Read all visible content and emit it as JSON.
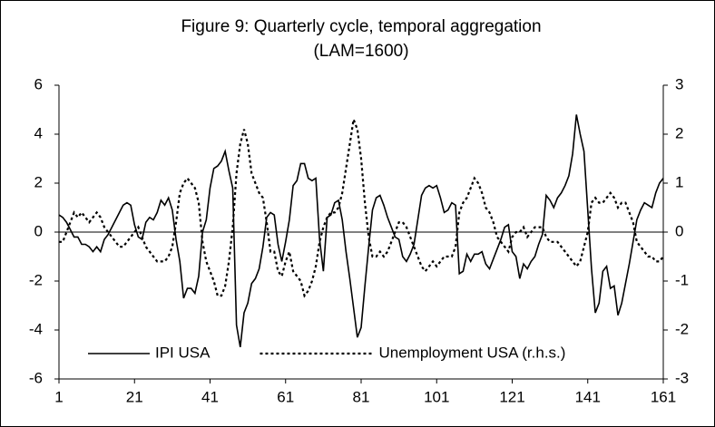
{
  "chart_data": {
    "type": "line",
    "title": [
      "Figure 9: Quarterly cycle, temporal aggregation",
      "(LAM=1600)"
    ],
    "x": [
      1,
      2,
      3,
      4,
      5,
      6,
      7,
      8,
      9,
      10,
      11,
      12,
      13,
      14,
      15,
      16,
      17,
      18,
      19,
      20,
      21,
      22,
      23,
      24,
      25,
      26,
      27,
      28,
      29,
      30,
      31,
      32,
      33,
      34,
      35,
      36,
      37,
      38,
      39,
      40,
      41,
      42,
      43,
      44,
      45,
      46,
      47,
      48,
      49,
      50,
      51,
      52,
      53,
      54,
      55,
      56,
      57,
      58,
      59,
      60,
      61,
      62,
      63,
      64,
      65,
      66,
      67,
      68,
      69,
      70,
      71,
      72,
      73,
      74,
      75,
      76,
      77,
      78,
      79,
      80,
      81,
      82,
      83,
      84,
      85,
      86,
      87,
      88,
      89,
      90,
      91,
      92,
      93,
      94,
      95,
      96,
      97,
      98,
      99,
      100,
      101,
      102,
      103,
      104,
      105,
      106,
      107,
      108,
      109,
      110,
      111,
      112,
      113,
      114,
      115,
      116,
      117,
      118,
      119,
      120,
      121,
      122,
      123,
      124,
      125,
      126,
      127,
      128,
      129,
      130,
      131,
      132,
      133,
      134,
      135,
      136,
      137,
      138,
      139,
      140,
      141,
      142,
      143,
      144,
      145,
      146,
      147,
      148,
      149,
      150,
      151,
      152,
      153,
      154,
      155,
      156,
      157,
      158,
      159,
      160,
      161
    ],
    "series": [
      {
        "name": "IPI USA",
        "color": "#000000",
        "line_style": "solid",
        "axis": "y",
        "values": [
          0.7,
          0.6,
          0.4,
          0.1,
          -0.2,
          -0.2,
          -0.5,
          -0.5,
          -0.6,
          -0.8,
          -0.6,
          -0.8,
          -0.3,
          -0.1,
          0.2,
          0.5,
          0.8,
          1.1,
          1.2,
          1.1,
          0.3,
          -0.2,
          -0.3,
          0.4,
          0.6,
          0.5,
          0.8,
          1.3,
          1.1,
          1.4,
          0.9,
          -0.3,
          -1.2,
          -2.7,
          -2.3,
          -2.3,
          -2.5,
          -1.8,
          0,
          0.5,
          1.8,
          2.6,
          2.7,
          2.9,
          3.3,
          2.5,
          1.8,
          -3.8,
          -4.7,
          -3.3,
          -2.9,
          -2.1,
          -1.9,
          -1.5,
          -0.6,
          0.6,
          0.8,
          0.7,
          -0.5,
          -1.2,
          -0.4,
          0.5,
          1.9,
          2.1,
          2.8,
          2.8,
          2.2,
          2.1,
          2.2,
          -0.3,
          -1.6,
          0.6,
          0.7,
          1.2,
          1.3,
          0.5,
          -0.8,
          -1.9,
          -3.1,
          -4.3,
          -3.9,
          -2.2,
          -0.6,
          0.9,
          1.4,
          1.5,
          1.1,
          0.6,
          0.2,
          -0.2,
          -0.3,
          -1.0,
          -1.2,
          -0.9,
          -0.5,
          0.5,
          1.5,
          1.8,
          1.9,
          1.8,
          1.9,
          1.4,
          0.8,
          0.9,
          1.2,
          1.1,
          -1.7,
          -1.6,
          -0.9,
          -1.2,
          -0.9,
          -0.9,
          -0.8,
          -1.3,
          -1.5,
          -1.1,
          -0.7,
          -0.3,
          0.2,
          0.3,
          -0.8,
          -1.0,
          -1.9,
          -1.3,
          -1.5,
          -1.2,
          -1.0,
          -0.5,
          -0.1,
          1.5,
          1.3,
          1.0,
          1.4,
          1.6,
          1.9,
          2.3,
          3.2,
          4.8,
          4.0,
          3.3,
          0.9,
          -1.5,
          -3.3,
          -2.9,
          -1.6,
          -1.4,
          -2.3,
          -2.2,
          -3.4,
          -2.9,
          -2.1,
          -1.3,
          -0.4,
          0.5,
          0.9,
          1.2,
          1.1,
          1.0,
          1.6,
          2.0,
          2.2
        ]
      },
      {
        "name": "Unemployment USA (r.h.s.)",
        "color": "#000000",
        "line_style": "dashed",
        "axis": "y2",
        "values": [
          -0.2,
          -0.2,
          0,
          0.2,
          0.4,
          0.3,
          0.4,
          0.3,
          0.2,
          0.3,
          0.4,
          0.3,
          0.1,
          0,
          -0.1,
          -0.2,
          -0.3,
          -0.3,
          -0.2,
          -0.1,
          0,
          0.1,
          -0.1,
          -0.3,
          -0.4,
          -0.5,
          -0.6,
          -0.6,
          -0.6,
          -0.5,
          -0.3,
          0.2,
          0.8,
          1.0,
          1.1,
          1.0,
          0.9,
          0.6,
          -0.2,
          -0.6,
          -0.8,
          -1.0,
          -1.3,
          -1.3,
          -1.1,
          -0.6,
          0.1,
          1.2,
          1.8,
          2.1,
          1.8,
          1.2,
          1.0,
          0.8,
          0.7,
          0.2,
          -0.4,
          -0.4,
          -0.8,
          -0.9,
          -0.6,
          -0.4,
          -0.8,
          -0.9,
          -1.0,
          -1.3,
          -1.2,
          -1.0,
          -0.7,
          -0.2,
          0.1,
          0.3,
          0.4,
          0.4,
          0.5,
          0.8,
          1.3,
          1.8,
          2.3,
          2.1,
          1.5,
          0.6,
          -0.1,
          -0.5,
          -0.5,
          -0.4,
          -0.5,
          -0.4,
          -0.2,
          0,
          0.2,
          0.2,
          0.1,
          -0.1,
          -0.3,
          -0.5,
          -0.7,
          -0.8,
          -0.7,
          -0.6,
          -0.7,
          -0.6,
          -0.5,
          -0.5,
          -0.5,
          -0.3,
          0.4,
          0.6,
          0.7,
          0.9,
          1.1,
          1.0,
          0.8,
          0.5,
          0.4,
          0.2,
          -0.1,
          -0.2,
          -0.3,
          -0.4,
          -0.1,
          0,
          0,
          0.1,
          -0.1,
          0,
          0.1,
          0.1,
          0.1,
          -0.1,
          -0.2,
          -0.2,
          -0.2,
          -0.3,
          -0.4,
          -0.5,
          -0.6,
          -0.7,
          -0.6,
          -0.3,
          0,
          0.6,
          0.7,
          0.6,
          0.6,
          0.7,
          0.8,
          0.7,
          0.5,
          0.6,
          0.6,
          0.4,
          0.2,
          -0.2,
          -0.3,
          -0.4,
          -0.5,
          -0.5,
          -0.6,
          -0.6,
          -0.5
        ]
      }
    ],
    "xlim": [
      1,
      161
    ],
    "xticks": [
      1,
      21,
      41,
      61,
      81,
      101,
      121,
      141,
      161
    ],
    "ylim": [
      -6,
      6
    ],
    "yticks": [
      -6,
      -4,
      -2,
      0,
      2,
      4,
      6
    ],
    "y2lim": [
      -3,
      3
    ],
    "y2ticks": [
      -3,
      -2,
      -1,
      0,
      1,
      2,
      3
    ],
    "legend": "lower left",
    "grid": false
  }
}
